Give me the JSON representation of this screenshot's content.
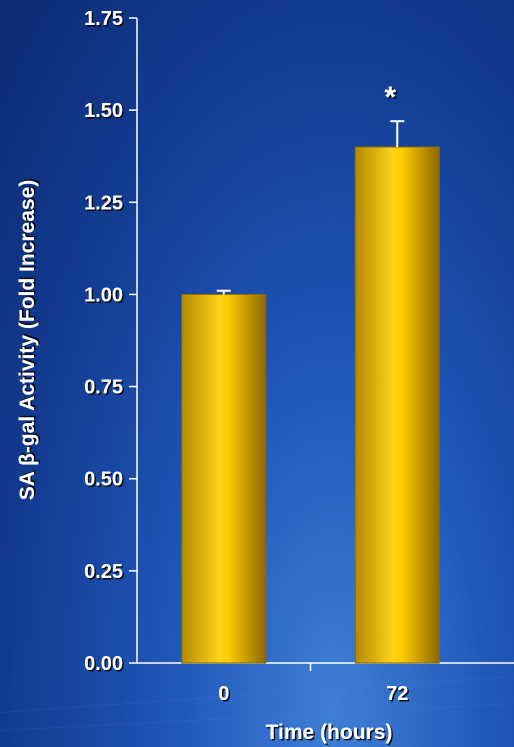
{
  "chart_data": {
    "type": "bar",
    "categories": [
      "0",
      "72"
    ],
    "values": [
      1.0,
      1.4
    ],
    "errors": [
      0.01,
      0.07
    ],
    "annotations": [
      "",
      "*"
    ],
    "xlabel": "Time (hours)",
    "ylabel": "SA β-gal Activity (Fold Increase)",
    "ylim": [
      0,
      1.75
    ],
    "yticks": [
      "0.00",
      "0.25",
      "0.50",
      "0.75",
      "1.00",
      "1.25",
      "1.50",
      "1.75"
    ],
    "grid": false,
    "colors": {
      "bar": "#FFCC00",
      "bar_edge": "#8a6a00",
      "axis": "#FFFFFF",
      "text": "#FFFFFF",
      "text_shadow": "#000000"
    }
  }
}
